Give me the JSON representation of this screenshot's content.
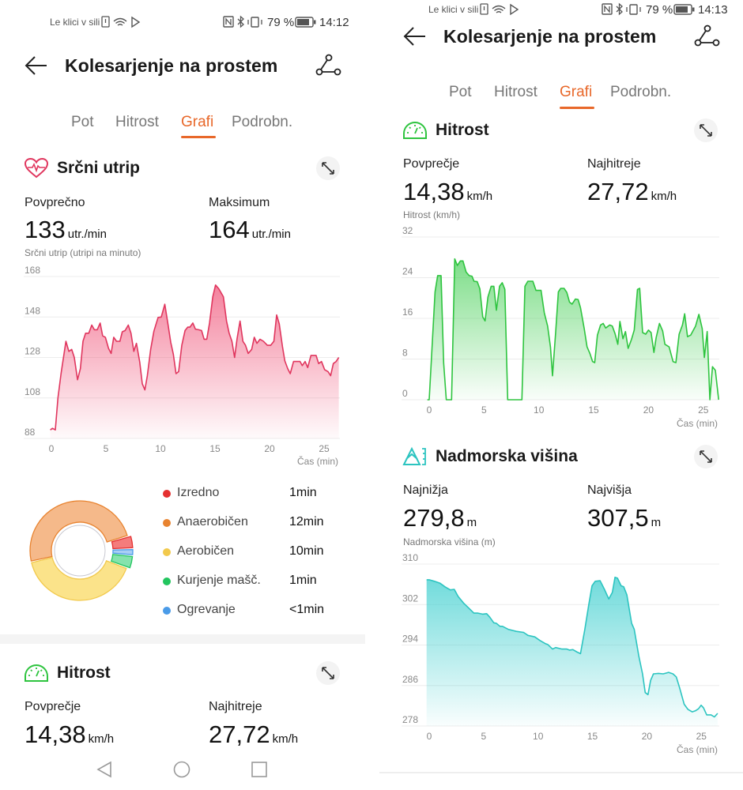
{
  "colors": {
    "accent": "#e8682a",
    "heart": "#e0365e",
    "speed": "#2ec43f",
    "elevation": "#2cc4c0"
  },
  "left": {
    "status": {
      "carrier": "Le klici v sili",
      "battery": "79 %",
      "time": "14:12",
      "icons": [
        "sim-alert-icon",
        "wifi-icon",
        "play-store-icon",
        "nfc-icon",
        "bluetooth-icon",
        "vibrate-icon",
        "battery-icon"
      ]
    },
    "header": {
      "title": "Kolesarjenje na prostem",
      "back_icon": "arrow-left-icon",
      "route_icon": "route-icon"
    },
    "tabs": [
      {
        "label": "Pot"
      },
      {
        "label": "Hitrost"
      },
      {
        "label": "Grafi",
        "active": true
      },
      {
        "label": "Podrobn."
      }
    ],
    "heart": {
      "title": "Srčni utrip",
      "icon": "heart-pulse-icon",
      "avg_label": "Povprečno",
      "avg_value": "133",
      "avg_unit": "utr./min",
      "max_label": "Maksimum",
      "max_value": "164",
      "max_unit": "utr./min",
      "axis_title": "Srčni utrip (utripi na minuto)"
    },
    "zones": [
      {
        "label": "Izredno",
        "value": "1min",
        "color": "#e53030"
      },
      {
        "label": "Anaerobičen",
        "value": "12min",
        "color": "#e8832f"
      },
      {
        "label": "Aerobičen",
        "value": "10min",
        "color": "#f2c94c"
      },
      {
        "label": "Kurjenje mašč.",
        "value": "1min",
        "color": "#22c55e"
      },
      {
        "label": "Ogrevanje",
        "value": "<1min",
        "color": "#4a9be8"
      }
    ],
    "speed": {
      "title": "Hitrost",
      "icon": "speedometer-icon",
      "avg_label": "Povprečje",
      "avg_value": "14,38",
      "avg_unit": "km/h",
      "max_label": "Najhitreje",
      "max_value": "27,72",
      "max_unit": "km/h"
    },
    "navbar": [
      "back-nav-icon",
      "home-nav-icon",
      "recents-nav-icon"
    ]
  },
  "right": {
    "status": {
      "carrier": "Le klici v sili",
      "battery": "79 %",
      "time": "14:13"
    },
    "header": {
      "title": "Kolesarjenje na prostem"
    },
    "tabs": [
      {
        "label": "Pot"
      },
      {
        "label": "Hitrost"
      },
      {
        "label": "Grafi",
        "active": true
      },
      {
        "label": "Podrobn."
      }
    ],
    "speed": {
      "title": "Hitrost",
      "icon": "speedometer-icon",
      "avg_label": "Povprečje",
      "avg_value": "14,38",
      "avg_unit": "km/h",
      "max_label": "Najhitreje",
      "max_value": "27,72",
      "max_unit": "km/h",
      "axis_title": "Hitrost (km/h)"
    },
    "elevation": {
      "title": "Nadmorska višina",
      "icon": "elevation-icon",
      "min_label": "Najnižja",
      "min_value": "279,8",
      "min_unit": "m",
      "max_label": "Najvišja",
      "max_value": "307,5",
      "max_unit": "m",
      "axis_title": "Nadmorska višina (m)"
    }
  },
  "chart_data": [
    {
      "type": "area",
      "ylabel": "Srčni utrip (utripi na minuto)",
      "xlabel": "Čas (min)",
      "ylim": [
        88,
        168
      ],
      "yticks": [
        88,
        108,
        128,
        148,
        168
      ],
      "xticks": [
        0,
        5,
        10,
        15,
        20,
        25
      ],
      "grid": true,
      "color": "#e0365e",
      "points": [
        [
          -0.1,
          92.2
        ],
        [
          0.1,
          93
        ],
        [
          0.36,
          92.2
        ],
        [
          0.6,
          108
        ],
        [
          0.9,
          120.5
        ],
        [
          1.33,
          136
        ],
        [
          1.6,
          131
        ],
        [
          1.86,
          132
        ],
        [
          2.1,
          128
        ],
        [
          2.4,
          117
        ],
        [
          2.66,
          122.5
        ],
        [
          2.9,
          136
        ],
        [
          3.14,
          140
        ],
        [
          3.43,
          140
        ],
        [
          3.7,
          144
        ],
        [
          3.94,
          141.7
        ],
        [
          4.2,
          141.7
        ],
        [
          4.47,
          145
        ],
        [
          4.7,
          138.7
        ],
        [
          4.95,
          138
        ],
        [
          5.24,
          132.5
        ],
        [
          5.48,
          130
        ],
        [
          5.72,
          138
        ],
        [
          5.97,
          136
        ],
        [
          6.28,
          136
        ],
        [
          6.5,
          140.7
        ],
        [
          6.76,
          141.3
        ],
        [
          7.05,
          144
        ],
        [
          7.3,
          140
        ],
        [
          7.56,
          131
        ],
        [
          7.8,
          135
        ],
        [
          8.1,
          125.7
        ],
        [
          8.33,
          115
        ],
        [
          8.57,
          112
        ],
        [
          8.8,
          119
        ],
        [
          9.1,
          132
        ],
        [
          9.4,
          141
        ],
        [
          9.78,
          147.8
        ],
        [
          10.07,
          148
        ],
        [
          10.4,
          154.3
        ],
        [
          10.7,
          144
        ],
        [
          10.94,
          135.5
        ],
        [
          11.18,
          129.6
        ],
        [
          11.43,
          120
        ],
        [
          11.67,
          121
        ],
        [
          11.96,
          134
        ],
        [
          12.25,
          141.3
        ],
        [
          12.5,
          143
        ],
        [
          12.7,
          143
        ],
        [
          12.97,
          145
        ],
        [
          13.2,
          142
        ],
        [
          13.5,
          141.7
        ],
        [
          13.77,
          141.3
        ],
        [
          14,
          137
        ],
        [
          14.25,
          137
        ],
        [
          14.5,
          145
        ],
        [
          14.8,
          158
        ],
        [
          15.05,
          163.8
        ],
        [
          15.34,
          162
        ],
        [
          15.77,
          158
        ],
        [
          16.06,
          146
        ],
        [
          16.3,
          140
        ],
        [
          16.55,
          136
        ],
        [
          16.8,
          128
        ],
        [
          17.03,
          137.5
        ],
        [
          17.3,
          146
        ],
        [
          17.56,
          136
        ],
        [
          17.8,
          134
        ],
        [
          18.04,
          130
        ],
        [
          18.36,
          132
        ],
        [
          18.6,
          138
        ],
        [
          18.84,
          135
        ],
        [
          19.13,
          137
        ],
        [
          19.44,
          136
        ],
        [
          19.8,
          134
        ],
        [
          20.1,
          134
        ],
        [
          20.4,
          136
        ],
        [
          20.65,
          149
        ],
        [
          20.89,
          144.6
        ],
        [
          21.18,
          133.5
        ],
        [
          21.4,
          126.4
        ],
        [
          21.67,
          122.5
        ],
        [
          21.9,
          120
        ],
        [
          22.2,
          126
        ],
        [
          22.5,
          126
        ],
        [
          22.8,
          126
        ],
        [
          23.0,
          124
        ],
        [
          23.26,
          126
        ],
        [
          23.5,
          123
        ],
        [
          23.8,
          129
        ],
        [
          24.03,
          129
        ],
        [
          24.27,
          129
        ],
        [
          24.5,
          125
        ],
        [
          24.76,
          126
        ],
        [
          25.05,
          122
        ],
        [
          25.36,
          121
        ],
        [
          25.6,
          119
        ],
        [
          25.85,
          125
        ],
        [
          26.1,
          126
        ],
        [
          26.35,
          128
        ]
      ]
    },
    {
      "type": "area",
      "ylabel": "Hitrost (km/h)",
      "xlabel": "Čas (min)",
      "ylim": [
        0,
        32
      ],
      "yticks": [
        0,
        8,
        16,
        24,
        32
      ],
      "xticks": [
        0,
        5,
        10,
        15,
        20,
        25
      ],
      "grid": true,
      "color": "#2ec43f",
      "points": [
        [
          -0.17,
          0
        ],
        [
          0,
          0
        ],
        [
          0.53,
          21.2
        ],
        [
          0.77,
          24.4
        ],
        [
          1.08,
          24.4
        ],
        [
          1.32,
          7.2
        ],
        [
          1.56,
          0
        ],
        [
          2.04,
          0
        ],
        [
          2.33,
          27.7
        ],
        [
          2.57,
          26.4
        ],
        [
          2.84,
          27.3
        ],
        [
          3.08,
          27.3
        ],
        [
          3.37,
          25.1
        ],
        [
          3.65,
          24.4
        ],
        [
          3.9,
          24.3
        ],
        [
          4.09,
          23.3
        ],
        [
          4.38,
          23.2
        ],
        [
          4.62,
          21.8
        ],
        [
          4.88,
          16.3
        ],
        [
          5.1,
          15.5
        ],
        [
          5.36,
          20.2
        ],
        [
          5.65,
          22.3
        ],
        [
          5.9,
          22.3
        ],
        [
          6.13,
          17.6
        ],
        [
          6.42,
          22.3
        ],
        [
          6.66,
          23
        ],
        [
          6.9,
          21.7
        ],
        [
          7.16,
          0
        ],
        [
          8.46,
          0
        ],
        [
          8.73,
          22.3
        ],
        [
          9.0,
          23.3
        ],
        [
          9.45,
          23.3
        ],
        [
          9.74,
          21.5
        ],
        [
          10.2,
          21.5
        ],
        [
          10.5,
          17.1
        ],
        [
          10.8,
          14.5
        ],
        [
          11.06,
          10.4
        ],
        [
          11.25,
          4.7
        ],
        [
          11.54,
          13.5
        ],
        [
          11.78,
          21.2
        ],
        [
          12.0,
          21.9
        ],
        [
          12.3,
          21.9
        ],
        [
          12.55,
          21.1
        ],
        [
          12.8,
          19.2
        ],
        [
          13.03,
          18.8
        ],
        [
          13.34,
          19.8
        ],
        [
          13.58,
          19.7
        ],
        [
          13.8,
          18.1
        ],
        [
          14.14,
          14
        ],
        [
          14.4,
          10.4
        ],
        [
          14.66,
          9.1
        ],
        [
          14.9,
          7.5
        ],
        [
          15.1,
          7.3
        ],
        [
          15.34,
          12.7
        ],
        [
          15.63,
          14.7
        ],
        [
          15.87,
          15
        ],
        [
          16.1,
          14.1
        ],
        [
          16.47,
          14.7
        ],
        [
          16.7,
          14.5
        ],
        [
          16.95,
          13
        ],
        [
          17.2,
          10.9
        ],
        [
          17.4,
          15.4
        ],
        [
          17.67,
          12
        ],
        [
          17.9,
          13.4
        ],
        [
          18.15,
          10.1
        ],
        [
          18.46,
          11.9
        ],
        [
          18.7,
          13.7
        ],
        [
          19.0,
          21.7
        ],
        [
          19.2,
          21.9
        ],
        [
          19.47,
          13.2
        ],
        [
          19.75,
          12.9
        ],
        [
          20.0,
          13.7
        ],
        [
          20.24,
          13.2
        ],
        [
          20.5,
          9.3
        ],
        [
          20.7,
          12.2
        ],
        [
          21.0,
          15
        ],
        [
          21.3,
          13.5
        ],
        [
          21.5,
          10.9
        ],
        [
          21.88,
          10.4
        ],
        [
          22.24,
          7.5
        ],
        [
          22.5,
          7.3
        ],
        [
          22.8,
          12.9
        ],
        [
          23.1,
          14.7
        ],
        [
          23.3,
          16.9
        ],
        [
          23.56,
          12.4
        ],
        [
          23.85,
          12.7
        ],
        [
          24.3,
          14.5
        ],
        [
          24.6,
          16.8
        ],
        [
          24.9,
          14
        ],
        [
          25.1,
          8.3
        ],
        [
          25.36,
          13.4
        ],
        [
          25.6,
          0
        ],
        [
          25.84,
          6.5
        ],
        [
          26.1,
          5.8
        ],
        [
          26.4,
          0
        ]
      ]
    },
    {
      "type": "area",
      "ylabel": "Nadmorska višina (m)",
      "xlabel": "Čas (min)",
      "ylim": [
        278,
        310
      ],
      "yticks": [
        278,
        286,
        294,
        302,
        310
      ],
      "xticks": [
        0,
        5,
        10,
        15,
        20,
        25
      ],
      "grid": true,
      "color": "#2cc4c0",
      "points": [
        [
          -0.24,
          306.9
        ],
        [
          0,
          306.9
        ],
        [
          0.48,
          306.6
        ],
        [
          1.0,
          306.2
        ],
        [
          1.45,
          305.5
        ],
        [
          1.94,
          304.9
        ],
        [
          2.3,
          305
        ],
        [
          2.66,
          303.6
        ],
        [
          3.15,
          302.3
        ],
        [
          3.63,
          301.3
        ],
        [
          4.1,
          300.3
        ],
        [
          4.48,
          300.3
        ],
        [
          4.9,
          300.1
        ],
        [
          5.28,
          300.2
        ],
        [
          5.57,
          299.5
        ],
        [
          5.93,
          298.4
        ],
        [
          6.17,
          298.3
        ],
        [
          6.5,
          297.7
        ],
        [
          6.73,
          297.7
        ],
        [
          7.26,
          297.1
        ],
        [
          8.0,
          296.7
        ],
        [
          8.67,
          296.5
        ],
        [
          9.08,
          295.9
        ],
        [
          9.7,
          295.6
        ],
        [
          10.17,
          294.9
        ],
        [
          10.65,
          294.3
        ],
        [
          10.9,
          294.1
        ],
        [
          11.33,
          293.2
        ],
        [
          11.62,
          293.5
        ],
        [
          12.2,
          293.2
        ],
        [
          12.64,
          293.2
        ],
        [
          12.88,
          293
        ],
        [
          13.2,
          293.1
        ],
        [
          13.6,
          292.6
        ],
        [
          13.9,
          292.3
        ],
        [
          14.3,
          297.1
        ],
        [
          14.65,
          301.8
        ],
        [
          14.96,
          305.7
        ],
        [
          15.25,
          306.6
        ],
        [
          15.7,
          306.7
        ],
        [
          16.1,
          305
        ],
        [
          16.5,
          303.1
        ],
        [
          16.83,
          304.4
        ],
        [
          17.07,
          307.4
        ],
        [
          17.3,
          307.2
        ],
        [
          17.63,
          305.7
        ],
        [
          17.87,
          305.5
        ],
        [
          18.16,
          303.9
        ],
        [
          18.6,
          298.3
        ],
        [
          18.84,
          297.1
        ],
        [
          19.25,
          291.9
        ],
        [
          19.6,
          288.3
        ],
        [
          19.85,
          284.6
        ],
        [
          20.1,
          284.2
        ],
        [
          20.34,
          287
        ],
        [
          20.6,
          288.3
        ],
        [
          21.07,
          288.4
        ],
        [
          21.5,
          288.3
        ],
        [
          22.0,
          288.6
        ],
        [
          22.4,
          288.3
        ],
        [
          22.7,
          287.7
        ],
        [
          23.0,
          285.6
        ],
        [
          23.43,
          282.3
        ],
        [
          23.77,
          281.3
        ],
        [
          24.16,
          280.8
        ],
        [
          24.45,
          281
        ],
        [
          24.74,
          281.4
        ],
        [
          24.98,
          282.1
        ],
        [
          25.2,
          281.6
        ],
        [
          25.5,
          280.2
        ],
        [
          25.9,
          280.2
        ],
        [
          26.2,
          279.8
        ],
        [
          26.5,
          280.5
        ]
      ]
    },
    {
      "type": "pie",
      "donut": true,
      "labels": [
        "Kurjenje mašč.",
        "Ogrevanje",
        "Izredno",
        "Anaerobičen",
        "Aerobičen"
      ],
      "values": [
        1,
        0.5,
        1,
        12,
        10
      ],
      "colors": [
        "#22c55e",
        "#4a9be8",
        "#e53030",
        "#e8832f",
        "#f2c94c"
      ],
      "fills": [
        "#86e3ad",
        "#a9cff5",
        "#f47c7c",
        "#f5b98a",
        "#fbe38a"
      ],
      "exploded": [
        true,
        true,
        true,
        false,
        false
      ]
    }
  ]
}
